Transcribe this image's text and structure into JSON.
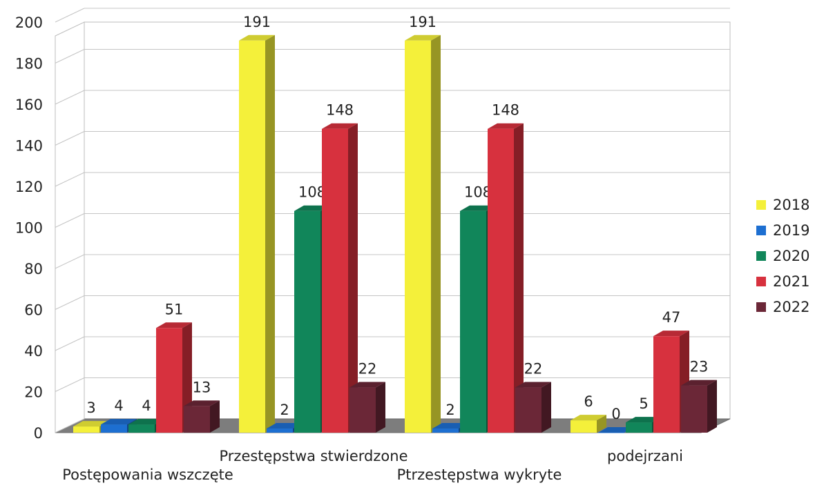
{
  "chart_data": {
    "type": "bar",
    "title": "",
    "xlabel": "",
    "ylabel": "",
    "ylim": [
      0,
      200
    ],
    "yticks": [
      0,
      20,
      40,
      60,
      80,
      100,
      120,
      140,
      160,
      180,
      200
    ],
    "categories": [
      "Postępowania wszczęte",
      "Przestępstwa stwierdzone",
      "Ptrzestępstwa wykryte",
      "podejrzani"
    ],
    "series": [
      {
        "name": "2018",
        "color": "#f4f03a",
        "values": [
          3,
          191,
          191,
          6
        ]
      },
      {
        "name": "2019",
        "color": "#1d6fd1",
        "values": [
          4,
          2,
          2,
          0
        ]
      },
      {
        "name": "2020",
        "color": "#11865a",
        "values": [
          4,
          108,
          108,
          5
        ]
      },
      {
        "name": "2021",
        "color": "#d7313e",
        "values": [
          51,
          148,
          148,
          47
        ]
      },
      {
        "name": "2022",
        "color": "#6b2737",
        "values": [
          13,
          22,
          22,
          23
        ]
      }
    ],
    "grid": true,
    "legend_position": "right",
    "three_d": true
  }
}
